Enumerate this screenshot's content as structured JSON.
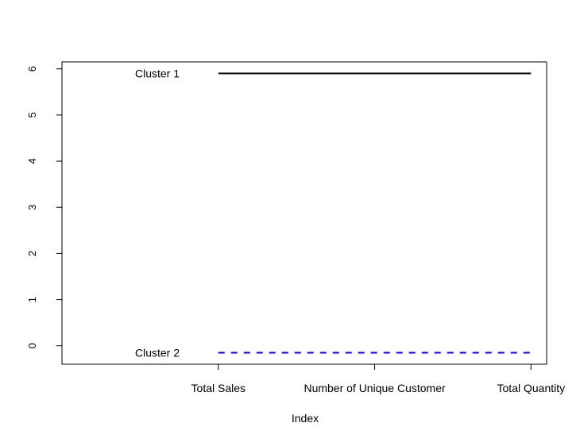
{
  "chart_data": {
    "type": "line",
    "title": "",
    "xlabel": "Index",
    "ylabel": "",
    "categories": [
      "Total Sales",
      "Number of Unique Customer",
      "Total Quantity"
    ],
    "x": [
      1,
      2,
      3
    ],
    "xlim": [
      0.0,
      3.1
    ],
    "ylim": [
      -0.4,
      6.15
    ],
    "y_ticks": [
      0,
      1,
      2,
      3,
      4,
      5,
      6
    ],
    "grid": false,
    "legend": "none",
    "series": [
      {
        "name": "Cluster 1",
        "values": [
          5.9,
          5.9,
          5.9
        ],
        "color": "#000000",
        "dash": "solid"
      },
      {
        "name": "Cluster 2",
        "values": [
          -0.15,
          -0.15,
          -0.15
        ],
        "color": "#0000ff",
        "dash": "dashed"
      }
    ]
  }
}
